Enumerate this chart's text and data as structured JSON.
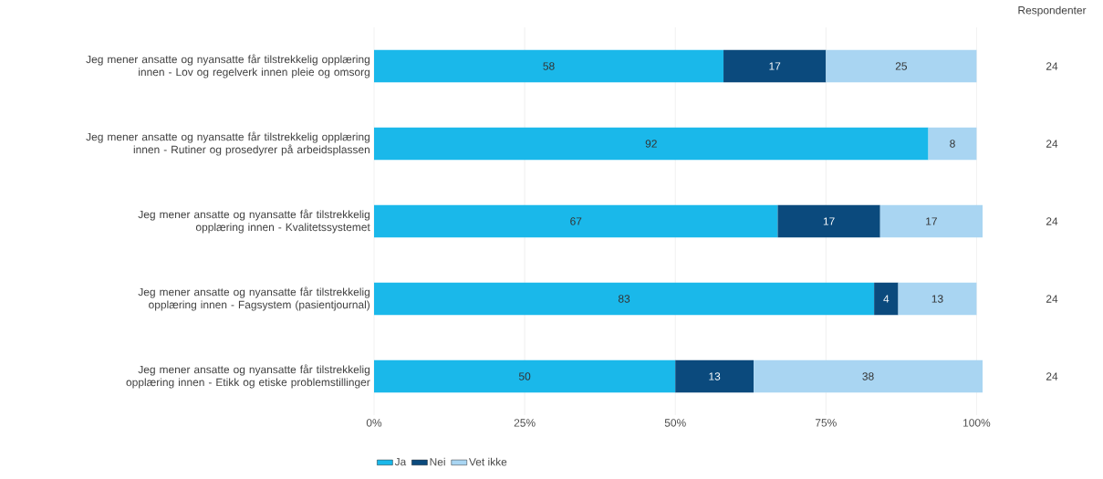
{
  "chart_data": {
    "type": "bar",
    "orientation": "horizontal",
    "stacked": true,
    "categories": [
      "Jeg mener ansatte og nyansatte får tilstrekkelig opplæring innen - Lov og regelverk innen pleie og omsorg",
      "Jeg mener ansatte og nyansatte får tilstrekkelig opplæring innen - Rutiner og prosedyrer på arbeidsplassen",
      "Jeg mener ansatte og nyansatte får tilstrekkelig opplæring innen - Kvalitetssystemet",
      "Jeg mener ansatte og nyansatte får tilstrekkelig opplæring innen - Fagsystem (pasientjournal)",
      "Jeg mener ansatte og nyansatte får tilstrekkelig opplæring innen - Etikk og etiske problemstillinger"
    ],
    "series": [
      {
        "name": "Ja",
        "color": "#1ab8ea",
        "values": [
          58,
          92,
          67,
          83,
          50
        ]
      },
      {
        "name": "Nei",
        "color": "#0b4a7d",
        "values": [
          17,
          null,
          17,
          4,
          13
        ]
      },
      {
        "name": "Vet ikke",
        "color": "#a9d5f2",
        "values": [
          25,
          8,
          17,
          13,
          38
        ]
      }
    ],
    "xlim": [
      0,
      101
    ],
    "xticks": [
      {
        "value": 0,
        "label": "0%"
      },
      {
        "value": 25,
        "label": "25%"
      },
      {
        "value": 50,
        "label": "50%"
      },
      {
        "value": 75,
        "label": "75%"
      },
      {
        "value": 100,
        "label": "100%"
      }
    ],
    "grid": "x",
    "legend": "bottom",
    "data_labels": true,
    "annotations": [
      "Respondenter",
      "24",
      "24",
      "24",
      "24",
      "24"
    ]
  }
}
